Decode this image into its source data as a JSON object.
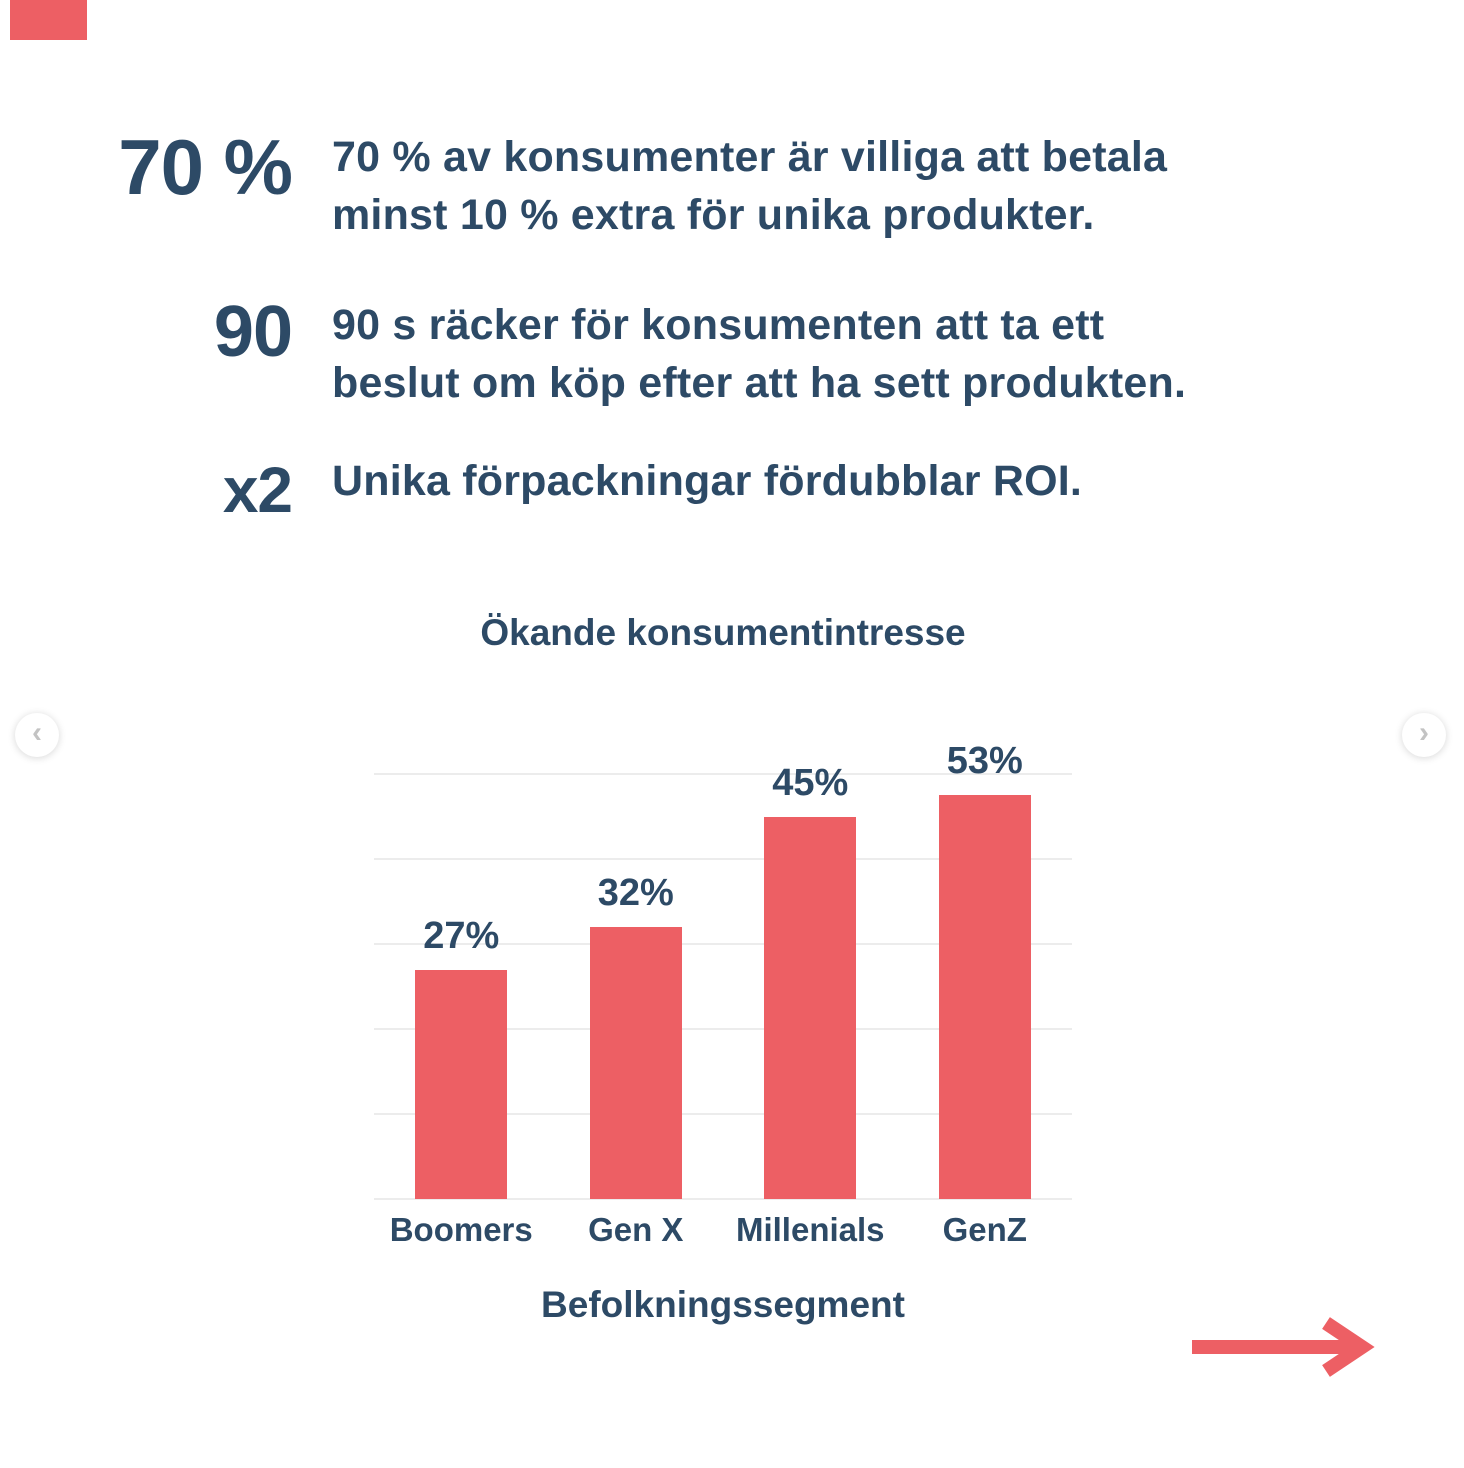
{
  "colors": {
    "accent": "#ed5f64",
    "navy": "#2d4a66",
    "gridline": "#ececec",
    "chevron_gray": "#c3c3c3",
    "background": "#ffffff"
  },
  "stats": [
    {
      "number": "70 %",
      "text": "70 % av konsumenter är villiga att betala\nminst 10 % extra för unika produkter."
    },
    {
      "number": "90",
      "text": "90 s räcker för konsumenten att ta ett\nbeslut om köp efter att ha sett produkten."
    },
    {
      "number": "x2",
      "text": "Unika förpackningar fördubblar ROI."
    }
  ],
  "chart_data": {
    "type": "bar",
    "title": "Ökande konsumentintresse",
    "categories": [
      "Boomers",
      "Gen X",
      "Millenials",
      "GenZ"
    ],
    "values": [
      27,
      32,
      45,
      53
    ],
    "value_labels": [
      "27%",
      "32%",
      "45%",
      "53%"
    ],
    "xlabel": "Befolkningssegment",
    "ylabel": "",
    "ylim": [
      0,
      54
    ],
    "gridlines_pct": [
      0,
      10,
      20,
      30,
      40,
      50
    ],
    "grid": true,
    "legend": false,
    "bar_color": "#ed5f64"
  },
  "carousel": {
    "prev_icon": "‹",
    "next_icon": "›"
  }
}
